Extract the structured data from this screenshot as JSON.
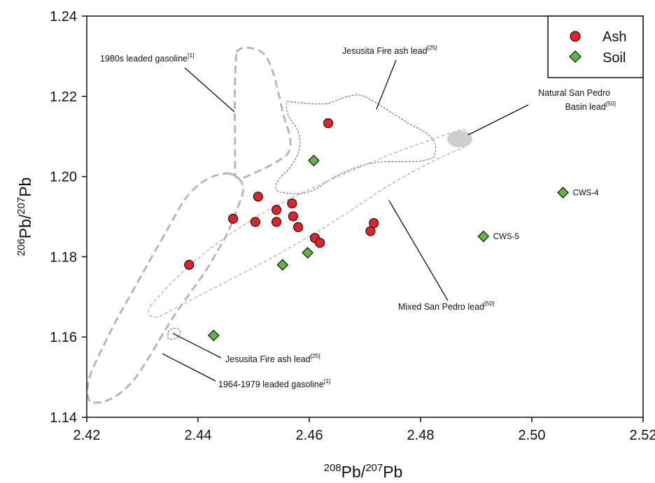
{
  "chart_data": {
    "type": "scatter",
    "xlabel": {
      "pre": "208",
      "main1": "Pb/",
      "sup2": "207",
      "main2": "Pb"
    },
    "ylabel": {
      "pre": "206",
      "main1": "Pb/",
      "sup2": "207",
      "main2": "Pb"
    },
    "xlim": [
      2.42,
      2.52
    ],
    "ylim": [
      1.14,
      1.24
    ],
    "xticks": [
      "2.42",
      "2.44",
      "2.46",
      "2.48",
      "2.50",
      "2.52"
    ],
    "yticks": [
      "1.14",
      "1.16",
      "1.18",
      "1.20",
      "1.22",
      "1.24"
    ],
    "grid": false,
    "legend_position": "top-right",
    "series": [
      {
        "name": "Ash",
        "marker": "circle",
        "color": "#e8202a",
        "points": [
          [
            2.4384,
            1.178
          ],
          [
            2.4463,
            1.1895
          ],
          [
            2.4503,
            1.1887
          ],
          [
            2.4508,
            1.195
          ],
          [
            2.4541,
            1.1917
          ],
          [
            2.4541,
            1.1887
          ],
          [
            2.4569,
            1.1933
          ],
          [
            2.4571,
            1.1901
          ],
          [
            2.458,
            1.1874
          ],
          [
            2.461,
            1.1847
          ],
          [
            2.4619,
            1.1835
          ],
          [
            2.4634,
            1.2133
          ],
          [
            2.471,
            1.1864
          ],
          [
            2.4716,
            1.1884
          ]
        ]
      },
      {
        "name": "Soil",
        "marker": "diamond",
        "color": "#5cb83a",
        "points": [
          [
            2.4428,
            1.1604
          ],
          [
            2.4552,
            1.178
          ],
          [
            2.4597,
            1.181
          ],
          [
            2.4608,
            1.204
          ],
          [
            2.4913,
            1.1851
          ],
          [
            2.5056,
            1.196
          ]
        ]
      }
    ],
    "point_labels": [
      {
        "text": "CWS-4",
        "x": 2.5056,
        "y": 1.196
      },
      {
        "text": "CWS-5",
        "x": 2.4913,
        "y": 1.1851
      }
    ],
    "annotations": [
      {
        "id": "gas-1980s",
        "text": "1980s leaded gasoline",
        "ref": "[1]"
      },
      {
        "id": "jes-top",
        "text": "Jesusita Fire ash lead",
        "ref": "[25]"
      },
      {
        "id": "nat-sp-1",
        "text": "Natural San Pedro",
        "ref": ""
      },
      {
        "id": "nat-sp-2",
        "text": "Basin lead",
        "ref": "[50]"
      },
      {
        "id": "mixed-sp",
        "text": "Mixed San Pedro lead",
        "ref": "[50]"
      },
      {
        "id": "jes-bottom",
        "text": "Jesusita Fire ash lead",
        "ref": "[25]"
      },
      {
        "id": "gas-1964",
        "text": "1964-1979 leaded gasoline",
        "ref": "[1]"
      }
    ],
    "field_colors": {
      "gasoline": "#b8b8b8",
      "jesusita": "#5a5aa6",
      "mixed_san_pedro": "#b8b8b8",
      "natural_san_pedro": "#cfcfcf"
    }
  }
}
